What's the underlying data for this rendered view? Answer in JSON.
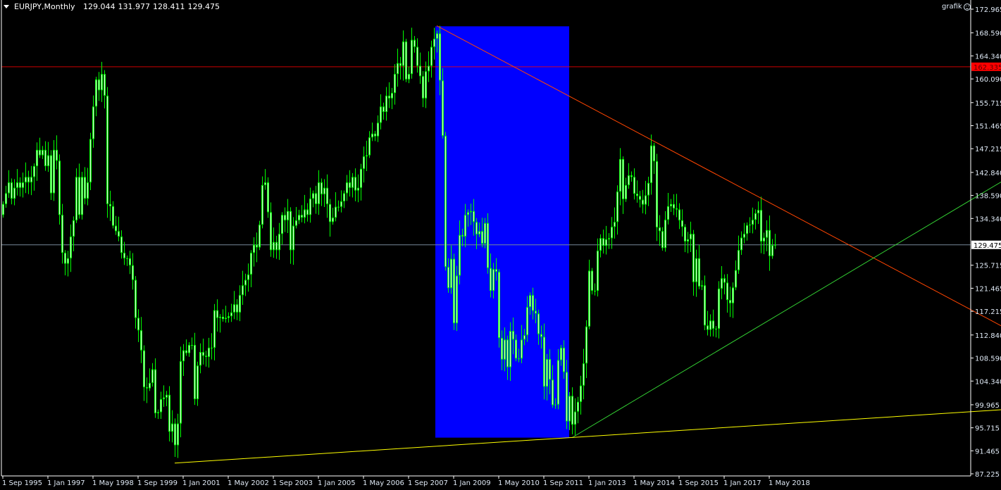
{
  "header": {
    "symbol": "EURJPY,Monthly",
    "open": "129.044",
    "high": "131.977",
    "low": "128.411",
    "close": "129.475"
  },
  "expert": {
    "label": "grafik",
    "icon": "smiley-icon"
  },
  "colors": {
    "background": "#000000",
    "candle": "#00ff00",
    "axis_text": "#dfe9f5",
    "bid_line": "#778899",
    "hline": "#ff0000",
    "rectangle": "#0000ff",
    "trend_down": "#ff4500",
    "trend_up": "#32cd32",
    "trend_base": "#ffff00"
  },
  "chart_data": {
    "type": "candlestick",
    "symbol": "EURJPY",
    "timeframe": "Monthly",
    "start": "1995-09",
    "interval": "1 month",
    "ylim": [
      87.225,
      172.965
    ],
    "grid": false,
    "closes": [
      137,
      139,
      141,
      138,
      140,
      141,
      140,
      141,
      142,
      141,
      142,
      144,
      147,
      146,
      147,
      144,
      146,
      139,
      147,
      145,
      135,
      128,
      126,
      127,
      131,
      134,
      142,
      135,
      142,
      138,
      141,
      149,
      155,
      160,
      158,
      161,
      157,
      137,
      136.6,
      133,
      132,
      131,
      128,
      127,
      127,
      125.7,
      123,
      116,
      113.7,
      110,
      103.2,
      103,
      104,
      106.5,
      98.4,
      98.6,
      101,
      101.3,
      101.8,
      95,
      96.5,
      92.5,
      96.5,
      108,
      110,
      109.5,
      111,
      111,
      101,
      107.2,
      109.7,
      109,
      108.8,
      110.5,
      110.5,
      117.4,
      116,
      116.2,
      115.8,
      116,
      116.3,
      117,
      118.5,
      117,
      120.2,
      122,
      123,
      124,
      128,
      129.5,
      129,
      133.2,
      140.5,
      141,
      135.5,
      128.5,
      130,
      128.5,
      131.5,
      135,
      134,
      135.7,
      128.5,
      133,
      134,
      135,
      134.5,
      136,
      135,
      138,
      139,
      137,
      141,
      138.8,
      140,
      137,
      133.7,
      134.5,
      136.5,
      136.5,
      137.5,
      139,
      141,
      140,
      142,
      139.5,
      140,
      143.5,
      145.8,
      146,
      149.3,
      150,
      149.5,
      152,
      155,
      154,
      157,
      156.5,
      157.5,
      161,
      163,
      162.5,
      167,
      160,
      161,
      167.3,
      166,
      162.5,
      160.6,
      156.5,
      161.5,
      162.5,
      166,
      167.5,
      168.5,
      159.8,
      149.6,
      125.4,
      121.5,
      126.9,
      115,
      123.8,
      131.3,
      131,
      135,
      135.5,
      135.7,
      133.7,
      131.4,
      132,
      129.7,
      133.5,
      125.2,
      121,
      125,
      124.5,
      112.3,
      108.3,
      112,
      106.9,
      113.6,
      112,
      108.5,
      108.5,
      112,
      112.8,
      118,
      120.2,
      117.3,
      116.8,
      113,
      112.5,
      103.3,
      108.4,
      104.6,
      99.9,
      100,
      108.2,
      110.5,
      106,
      96.9,
      101.6,
      96.3,
      98.7,
      100.5,
      103.5,
      107.6,
      114.4,
      124.7,
      121,
      121,
      128.4,
      130.7,
      129.3,
      130.5,
      130.7,
      132.8,
      133.7,
      139.3,
      145.3,
      137.9,
      140.5,
      142.3,
      142,
      138.9,
      138.5,
      137.8,
      136.9,
      138.6,
      140.9,
      147.8,
      144.9,
      132.7,
      132,
      128.9,
      134.1,
      136.6,
      137,
      136.2,
      136,
      134,
      132.8,
      130.1,
      130.5,
      131.5,
      122.6,
      127,
      121.8,
      122,
      114.6,
      113.8,
      115.5,
      114,
      114,
      121.4,
      123.3,
      122.5,
      119.3,
      118.7,
      121.6,
      124.8,
      128.5,
      130.8,
      131.5,
      133.1,
      133.2,
      134.1,
      135.3,
      135.9,
      130.1,
      130.8,
      132.2,
      127.4,
      129.4,
      129.475
    ],
    "y_ticks": [
      "172.965",
      "168.590",
      "164.340",
      "160.090",
      "155.715",
      "151.465",
      "147.215",
      "142.840",
      "138.590",
      "134.340",
      "125.715",
      "121.465",
      "117.215",
      "112.840",
      "108.590",
      "104.340",
      "99.965",
      "95.715",
      "91.465",
      "87.225"
    ],
    "x_ticks": [
      {
        "date": "1995-09",
        "label": "1 Sep 1995"
      },
      {
        "date": "1997-01",
        "label": "1 Jan 1997"
      },
      {
        "date": "1998-05",
        "label": "1 May 1998"
      },
      {
        "date": "1999-09",
        "label": "1 Sep 1999"
      },
      {
        "date": "2001-01",
        "label": "1 Jan 2001"
      },
      {
        "date": "2002-05",
        "label": "1 May 2002"
      },
      {
        "date": "2003-09",
        "label": "1 Sep 2003"
      },
      {
        "date": "2005-01",
        "label": "1 Jan 2005"
      },
      {
        "date": "2006-05",
        "label": "1 May 2006"
      },
      {
        "date": "2007-09",
        "label": "1 Sep 2007"
      },
      {
        "date": "2009-01",
        "label": "1 Jan 2009"
      },
      {
        "date": "2010-05",
        "label": "1 May 2010"
      },
      {
        "date": "2011-09",
        "label": "1 Sep 2011"
      },
      {
        "date": "2013-01",
        "label": "1 Jan 2013"
      },
      {
        "date": "2014-05",
        "label": "1 May 2014"
      },
      {
        "date": "2015-09",
        "label": "1 Sep 2015"
      },
      {
        "date": "2017-01",
        "label": "1 Jan 2017"
      },
      {
        "date": "2018-05",
        "label": "1 May 2018"
      }
    ],
    "bid_price": "129.475",
    "objects": {
      "horizontal_line": {
        "price": "162.335",
        "color": "#ff0000"
      },
      "rectangle": {
        "time1": "2008-07",
        "price1": 169.8,
        "time2": "2012-07",
        "price2": 93.9,
        "color": "#0000ff"
      },
      "trendlines": [
        {
          "name": "resistance",
          "time1": "2008-07",
          "price1": 169.9,
          "time2": "2014-07",
          "price2": 150.0,
          "color": "#ff4500",
          "ray": true
        },
        {
          "name": "support",
          "time1": "2012-07",
          "price1": 93.9,
          "time2": "2016-10",
          "price2": 109.7,
          "color": "#32cd32",
          "ray": true
        },
        {
          "name": "base",
          "time1": "2000-10",
          "price1": 89.2,
          "time2": "2012-06",
          "price2": 93.9,
          "color": "#ffff00",
          "ray": true
        }
      ]
    }
  }
}
